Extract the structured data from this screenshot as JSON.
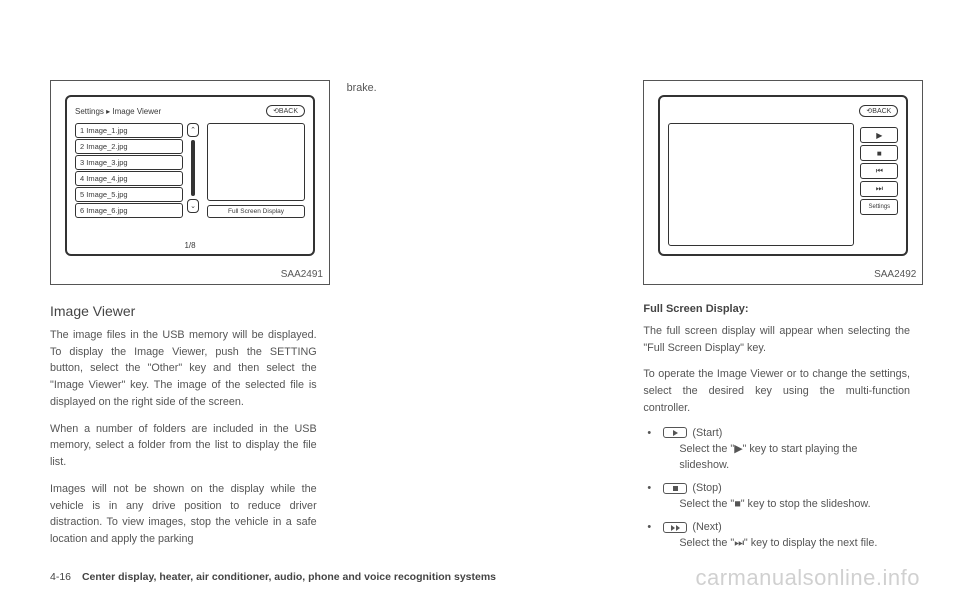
{
  "figure1": {
    "label": "SAA2491",
    "breadcrumb": "Settings ▸ Image Viewer",
    "back": "⟲BACK",
    "items": [
      "1 Image_1.jpg",
      "2 Image_2.jpg",
      "3 Image_3.jpg",
      "4 Image_4.jpg",
      "5 Image_5.jpg",
      "6 Image_6.jpg"
    ],
    "fullBtn": "Full Screen Display",
    "pageNum": "1/8"
  },
  "figure2": {
    "label": "SAA2492",
    "back": "⟲BACK",
    "buttons": [
      "▶",
      "■",
      "⏮",
      "⏭",
      "Settings"
    ]
  },
  "col1": {
    "heading": "Image Viewer",
    "p1": "The image files in the USB memory will be displayed. To display the Image Viewer, push the SETTING button, select the \"Other\" key and then select the \"Image Viewer\" key. The image of the selected file is displayed on the right side of the screen.",
    "p2": "When a number of folders are included in the USB memory, select a folder from the list to display the file list.",
    "p3": "Images will not be shown on the display while the vehicle is in any drive position to reduce driver distraction. To view images, stop the vehicle in a safe location and apply the parking"
  },
  "col2": {
    "p1": "brake."
  },
  "col3": {
    "heading": "Full Screen Display:",
    "p1": "The full screen display will appear when selecting the \"Full Screen Display\" key.",
    "p2": "To operate the Image Viewer or to change the settings, select the desired key using the multi-function controller.",
    "b1": "(Start)",
    "b1sub": "Select the \"▶\" key to start playing the slideshow.",
    "b2": "(Stop)",
    "b2sub": "Select the \"■\" key to stop the slideshow.",
    "b3": "(Next)",
    "b3sub": "Select the \"⏭\" key to display the next file."
  },
  "footer": {
    "page": "4-16",
    "title": "Center display, heater, air conditioner, audio, phone and voice recognition systems"
  },
  "watermark": "carmanualsonline.info"
}
